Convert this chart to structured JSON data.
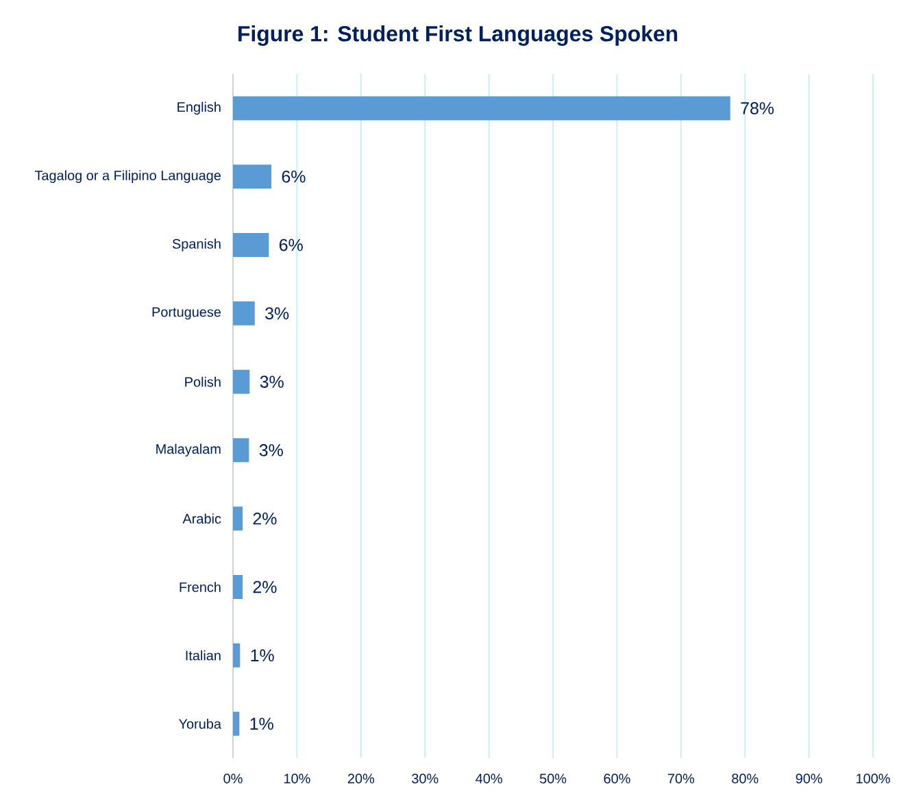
{
  "chart_data": {
    "type": "bar",
    "orientation": "horizontal",
    "title": "Figure 1: Student First Languages Spoken",
    "categories": [
      "English",
      "Tagalog or a Filipino Language",
      "Spanish",
      "Portuguese",
      "Polish",
      "Malayalam",
      "Arabic",
      "French",
      "Italian",
      "Yoruba"
    ],
    "values": [
      77.7,
      6.0,
      5.6,
      3.4,
      2.6,
      2.5,
      1.5,
      1.5,
      1.1,
      1.0
    ],
    "value_labels": [
      "78%",
      "6%",
      "6%",
      "3%",
      "3%",
      "3%",
      "2%",
      "2%",
      "1%",
      "1%"
    ],
    "color": "#5b9bd5",
    "xlim": [
      0,
      100
    ],
    "xticks": [
      {
        "value": 0,
        "label": "0%"
      },
      {
        "value": 10,
        "label": "10%"
      },
      {
        "value": 20,
        "label": "20%"
      },
      {
        "value": 30,
        "label": "30%"
      },
      {
        "value": 40,
        "label": "40%"
      },
      {
        "value": 50,
        "label": "50%"
      },
      {
        "value": 60,
        "label": "60%"
      },
      {
        "value": 70,
        "label": "70%"
      },
      {
        "value": 80,
        "label": "80%"
      },
      {
        "value": 90,
        "label": "90%"
      },
      {
        "value": 100,
        "label": "100%"
      }
    ],
    "grid": "x"
  }
}
